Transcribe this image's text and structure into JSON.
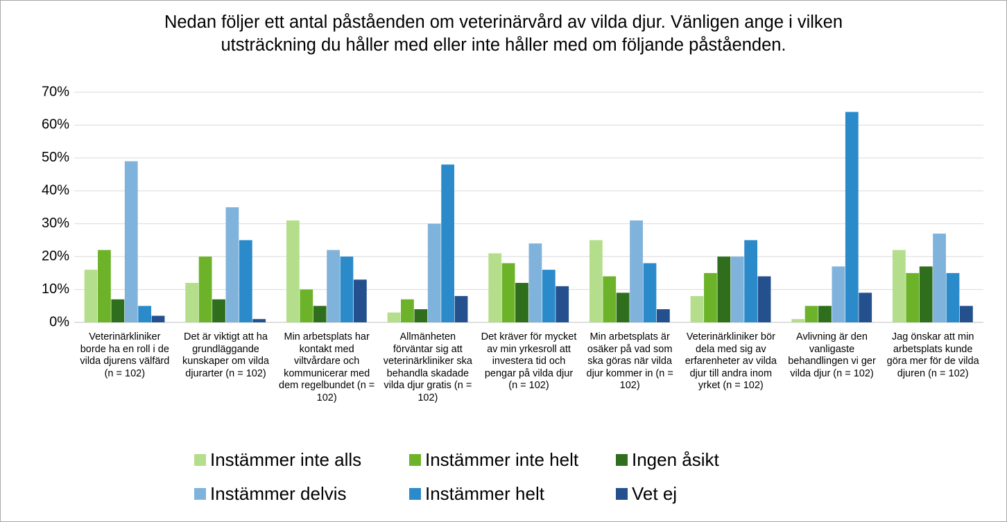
{
  "chart_data": {
    "type": "bar",
    "title": "Nedan följer ett antal påståenden om veterinärvård av vilda djur. Vänligen ange i vilken utsträckning du håller med eller inte håller med om följande påståenden.",
    "categories": [
      "Veterinärkliniker borde ha en roll i de vilda djurens välfärd (n = 102)",
      "Det är viktigt att ha grundläggande kunskaper om vilda djurarter (n = 102)",
      "Min arbetsplats har kontakt med viltvårdare och kommunicerar med dem regelbundet (n = 102)",
      "Allmänheten förväntar sig att veterinärkliniker ska behandla skadade vilda djur gratis (n = 102)",
      "Det kräver för mycket av min yrkesroll att investera tid och pengar på vilda djur (n = 102)",
      "Min arbetsplats är osäker på vad som ska göras när vilda djur kommer in (n = 102)",
      "Veterinärkliniker bör dela med sig av erfarenheter av vilda djur till andra inom yrket (n = 102)",
      "Avlivning är den vanligaste behandlingen vi ger vilda djur (n = 102)",
      "Jag önskar att min arbetsplats kunde göra mer för de vilda djuren (n = 102)"
    ],
    "series": [
      {
        "name": "Instämmer inte alls",
        "color": "#b4de8c",
        "values": [
          16,
          12,
          31,
          3,
          21,
          25,
          8,
          1,
          22
        ]
      },
      {
        "name": "Instämmer inte helt",
        "color": "#6db32a",
        "values": [
          22,
          20,
          10,
          7,
          18,
          14,
          15,
          5,
          15
        ]
      },
      {
        "name": "Ingen åsikt",
        "color": "#2f6e1c",
        "values": [
          7,
          7,
          5,
          4,
          12,
          9,
          20,
          5,
          17
        ]
      },
      {
        "name": "Instämmer delvis",
        "color": "#80b3dc",
        "values": [
          49,
          35,
          22,
          30,
          24,
          31,
          20,
          17,
          27
        ]
      },
      {
        "name": "Instämmer helt",
        "color": "#2b8bca",
        "values": [
          5,
          25,
          20,
          48,
          16,
          18,
          25,
          64,
          15
        ]
      },
      {
        "name": "Vet ej",
        "color": "#25508e",
        "values": [
          2,
          1,
          13,
          8,
          11,
          4,
          14,
          9,
          5
        ]
      }
    ],
    "ylim": [
      0,
      70
    ],
    "yticks": [
      {
        "value": 0,
        "label": "0%"
      },
      {
        "value": 10,
        "label": "10%"
      },
      {
        "value": 20,
        "label": "20%"
      },
      {
        "value": 30,
        "label": "30%"
      },
      {
        "value": 40,
        "label": "40%"
      },
      {
        "value": 50,
        "label": "50%"
      },
      {
        "value": 60,
        "label": "60%"
      },
      {
        "value": 70,
        "label": "70%"
      }
    ],
    "grid": true,
    "legend": "bottom"
  }
}
